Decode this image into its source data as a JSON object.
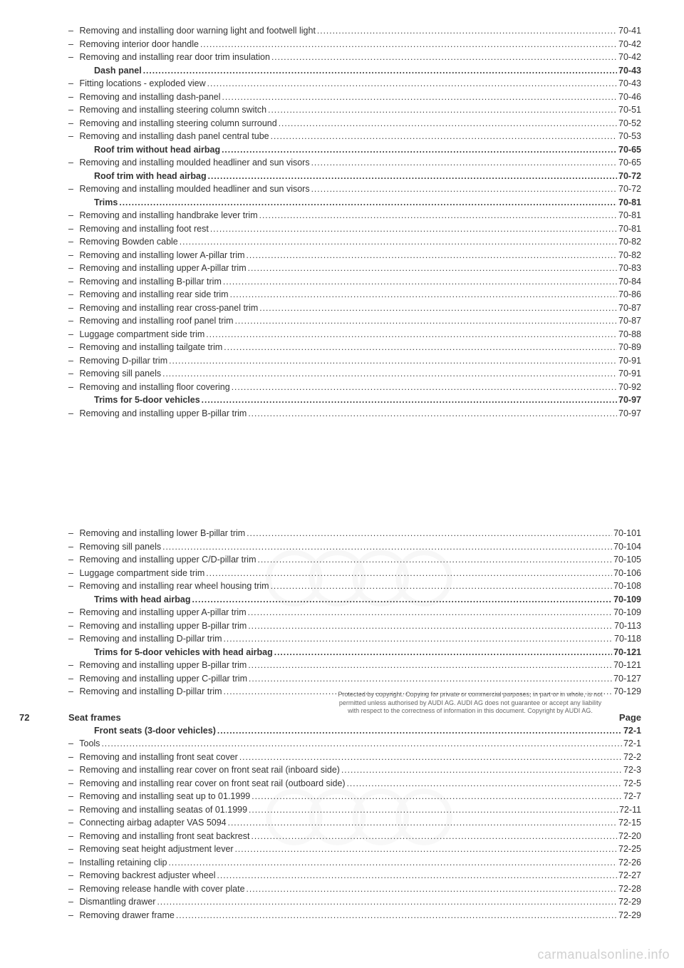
{
  "section1": {
    "items": [
      {
        "label": "Removing and installing door warning light and footwell light",
        "page": "70-41",
        "bold": false,
        "indent": true
      },
      {
        "label": "Removing interior door handle",
        "page": "70-42",
        "bold": false,
        "indent": true
      },
      {
        "label": "Removing and installing rear door trim insulation",
        "page": "70-42",
        "bold": false,
        "indent": true
      },
      {
        "label": "Dash panel",
        "page": "70-43",
        "bold": true,
        "indent": false
      },
      {
        "label": "Fitting locations - exploded view",
        "page": "70-43",
        "bold": false,
        "indent": true
      },
      {
        "label": "Removing and installing dash-panel",
        "page": "70-46",
        "bold": false,
        "indent": true
      },
      {
        "label": "Removing and installing steering column switch",
        "page": "70-51",
        "bold": false,
        "indent": true
      },
      {
        "label": "Removing and installing steering column surround",
        "page": "70-52",
        "bold": false,
        "indent": true
      },
      {
        "label": "Removing and installing dash panel central tube",
        "page": "70-53",
        "bold": false,
        "indent": true
      },
      {
        "label": "Roof trim without head airbag",
        "page": "70-65",
        "bold": true,
        "indent": false
      },
      {
        "label": "Removing and installing moulded headliner and sun visors",
        "page": "70-65",
        "bold": false,
        "indent": true
      },
      {
        "label": "Roof trim with head airbag",
        "page": "70-72",
        "bold": true,
        "indent": false
      },
      {
        "label": "Removing and installing moulded headliner and sun visors",
        "page": "70-72",
        "bold": false,
        "indent": true
      },
      {
        "label": "Trims",
        "page": "70-81",
        "bold": true,
        "indent": false
      },
      {
        "label": "Removing and installing handbrake lever trim",
        "page": "70-81",
        "bold": false,
        "indent": true
      },
      {
        "label": "Removing and installing foot rest",
        "page": "70-81",
        "bold": false,
        "indent": true
      },
      {
        "label": "Removing Bowden cable",
        "page": "70-82",
        "bold": false,
        "indent": true
      },
      {
        "label": "Removing and installing lower A-pillar trim",
        "page": "70-82",
        "bold": false,
        "indent": true
      },
      {
        "label": "Removing and installing upper A-pillar trim",
        "page": "70-83",
        "bold": false,
        "indent": true
      },
      {
        "label": "Removing and installing B-pillar trim",
        "page": "70-84",
        "bold": false,
        "indent": true
      },
      {
        "label": "Removing and installing rear side trim",
        "page": "70-86",
        "bold": false,
        "indent": true
      },
      {
        "label": "Removing and installing rear cross-panel trim",
        "page": "70-87",
        "bold": false,
        "indent": true
      },
      {
        "label": "Removing and installing roof panel trim",
        "page": "70-87",
        "bold": false,
        "indent": true
      },
      {
        "label": "Luggage compartment side trim",
        "page": "70-88",
        "bold": false,
        "indent": true
      },
      {
        "label": "Removing and installing tailgate trim",
        "page": "70-89",
        "bold": false,
        "indent": true
      },
      {
        "label": "Removing D-pillar trim",
        "page": "70-91",
        "bold": false,
        "indent": true
      },
      {
        "label": "Removing sill panels",
        "page": "70-91",
        "bold": false,
        "indent": true
      },
      {
        "label": "Removing and installing floor covering",
        "page": "70-92",
        "bold": false,
        "indent": true
      },
      {
        "label": "Trims for 5-door vehicles",
        "page": "70-97",
        "bold": true,
        "indent": false
      },
      {
        "label": "Removing and installing upper B-pillar trim",
        "page": "70-97",
        "bold": false,
        "indent": true
      }
    ]
  },
  "section2": {
    "items": [
      {
        "label": "Removing and installing lower B-pillar trim",
        "page": "70-101",
        "bold": false,
        "indent": true
      },
      {
        "label": "Removing sill panels",
        "page": "70-104",
        "bold": false,
        "indent": true
      },
      {
        "label": "Removing and installing upper C/D-pillar trim",
        "page": "70-105",
        "bold": false,
        "indent": true
      },
      {
        "label": "Luggage compartment side trim",
        "page": "70-106",
        "bold": false,
        "indent": true
      },
      {
        "label": "Removing and installing rear wheel housing trim",
        "page": "70-108",
        "bold": false,
        "indent": true
      },
      {
        "label": "Trims with head airbag",
        "page": "70-109",
        "bold": true,
        "indent": false
      },
      {
        "label": "Removing and installing upper A-pillar trim",
        "page": "70-109",
        "bold": false,
        "indent": true
      },
      {
        "label": "Removing and installing upper B-pillar trim",
        "page": "70-113",
        "bold": false,
        "indent": true
      },
      {
        "label": "Removing and installing D-pillar trim",
        "page": "70-118",
        "bold": false,
        "indent": true
      },
      {
        "label": "Trims for 5-door vehicles with head airbag",
        "page": "70-121",
        "bold": true,
        "indent": false
      },
      {
        "label": "Removing and installing upper B-pillar trim",
        "page": "70-121",
        "bold": false,
        "indent": true
      },
      {
        "label": "Removing and installing upper C-pillar trim",
        "page": "70-127",
        "bold": false,
        "indent": true
      },
      {
        "label": "Removing and installing D-pillar trim",
        "page": "70-129",
        "bold": false,
        "indent": true
      }
    ]
  },
  "section3": {
    "number": "72",
    "title": "Seat frames",
    "pageLabel": "Page",
    "items": [
      {
        "label": "Front seats (3-door vehicles)",
        "page": "72-1",
        "bold": true,
        "indent": false
      },
      {
        "label": "Tools",
        "page": "72-1",
        "bold": false,
        "indent": true
      },
      {
        "label": "Removing and installing front seat cover",
        "page": "72-2",
        "bold": false,
        "indent": true
      },
      {
        "label": "Removing and installing rear cover on front seat rail (inboard side)",
        "page": "72-3",
        "bold": false,
        "indent": true
      },
      {
        "label": "Removing and installing rear cover on front seat rail (outboard side)",
        "page": "72-5",
        "bold": false,
        "indent": true
      },
      {
        "label": "Removing and installing seat up to 01.1999",
        "page": "72-7",
        "bold": false,
        "indent": true
      },
      {
        "label": "Removing and installing seatas of 01.1999",
        "page": "72-11",
        "bold": false,
        "indent": true
      },
      {
        "label": "Connecting airbag adapter VAS 5094",
        "page": "72-15",
        "bold": false,
        "indent": true
      },
      {
        "label": "Removing and installing front seat backrest",
        "page": "72-20",
        "bold": false,
        "indent": true
      },
      {
        "label": "Removing seat height adjustment lever",
        "page": "72-25",
        "bold": false,
        "indent": true
      },
      {
        "label": "Installing retaining clip",
        "page": "72-26",
        "bold": false,
        "indent": true
      },
      {
        "label": "Removing backrest adjuster wheel",
        "page": "72-27",
        "bold": false,
        "indent": true
      },
      {
        "label": "Removing release handle with cover plate",
        "page": "72-28",
        "bold": false,
        "indent": true
      },
      {
        "label": "Dismantling drawer",
        "page": "72-29",
        "bold": false,
        "indent": true
      },
      {
        "label": "Removing drawer frame",
        "page": "72-29",
        "bold": false,
        "indent": true
      }
    ]
  },
  "copyright": {
    "line1": "Protected by copyright. Copying for private or commercial purposes, in part or in whole, is not",
    "line2": "permitted unless authorised by AUDI AG. AUDI AG does not guarantee or accept any liability",
    "line3": "with respect to the correctness of information in this document. Copyright by AUDI AG."
  },
  "footer": "carmanualsonline.info"
}
